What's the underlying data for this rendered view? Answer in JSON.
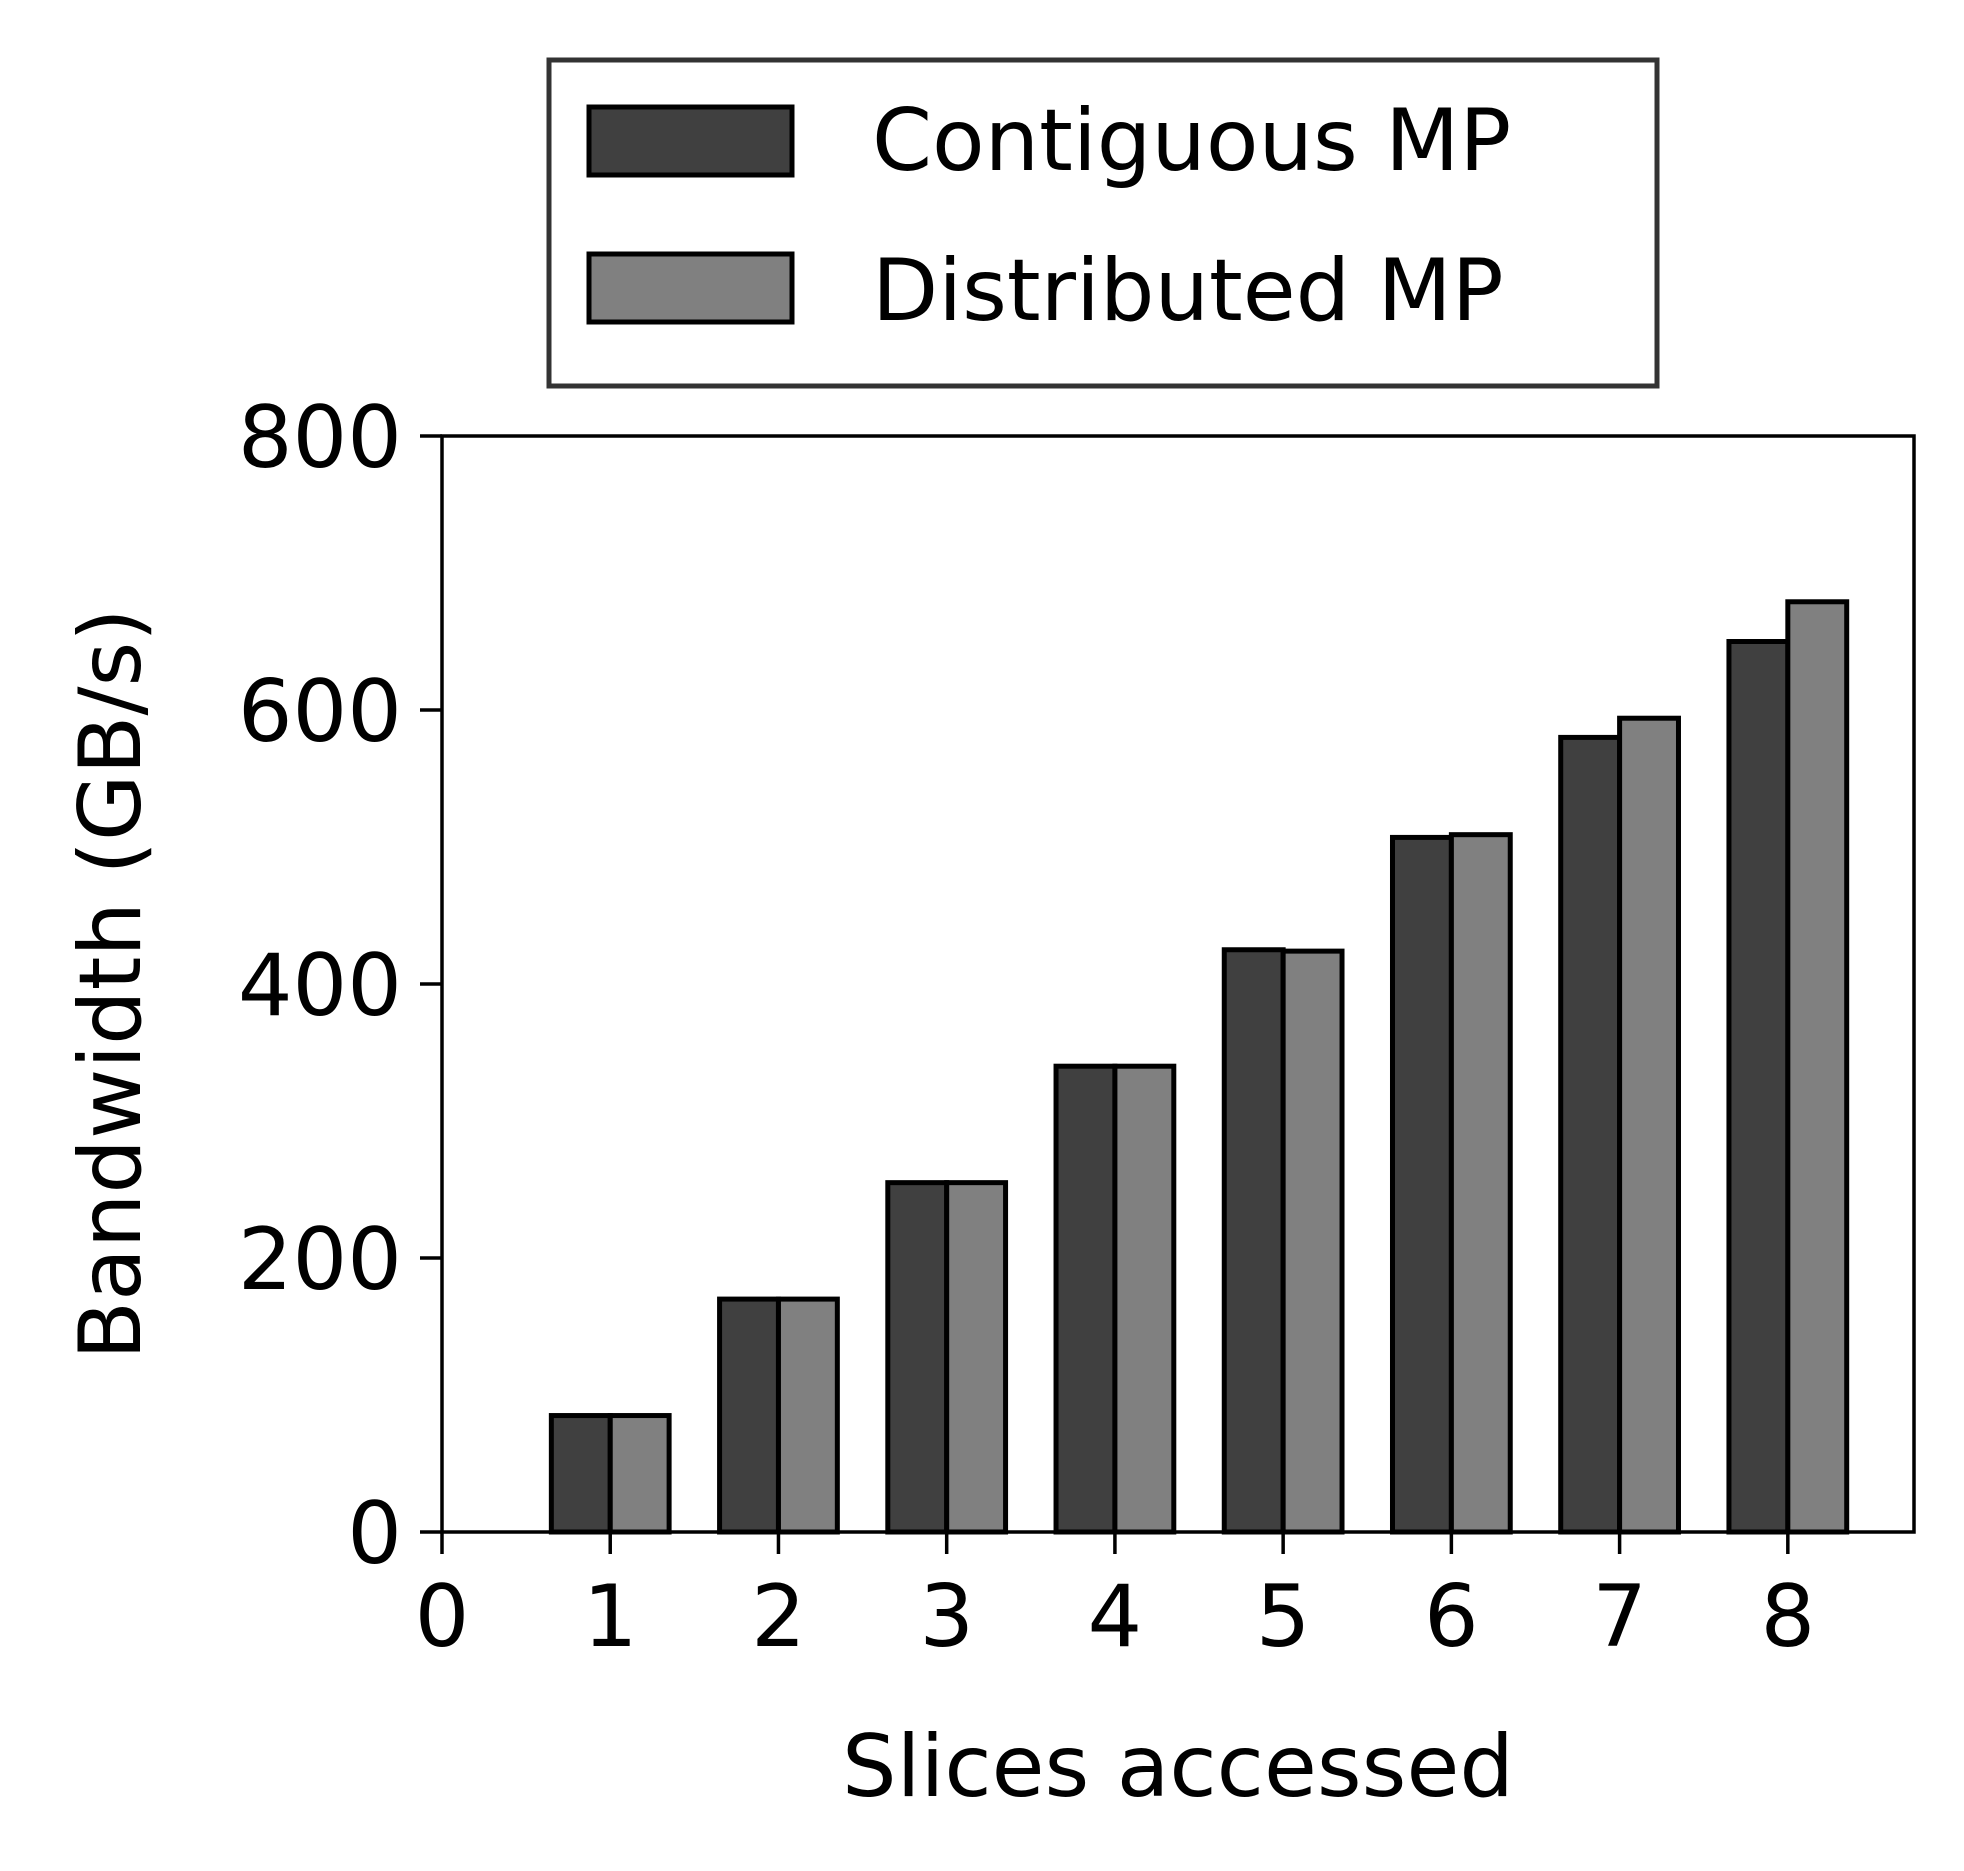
{
  "chart_data": {
    "type": "bar",
    "xlabel": "Slices accessed",
    "ylabel": "Bandwidth (GB/s)",
    "x": [
      1,
      2,
      3,
      4,
      5,
      6,
      7,
      8
    ],
    "xticks": [
      0,
      1,
      2,
      3,
      4,
      5,
      6,
      7,
      8
    ],
    "xlim": [
      0,
      8.75
    ],
    "yticks": [
      0,
      200,
      400,
      600,
      800
    ],
    "ylim": [
      0,
      800
    ],
    "legend_position": "top-center, outside plot",
    "grid": false,
    "series": [
      {
        "name": "Contiguous MP",
        "color": "#404040",
        "values": [
          85,
          170,
          255,
          340,
          425,
          507,
          580,
          650
        ]
      },
      {
        "name": "Distributed MP",
        "color": "#808080",
        "values": [
          85,
          170,
          255,
          340,
          424,
          509,
          594,
          679
        ]
      }
    ]
  }
}
